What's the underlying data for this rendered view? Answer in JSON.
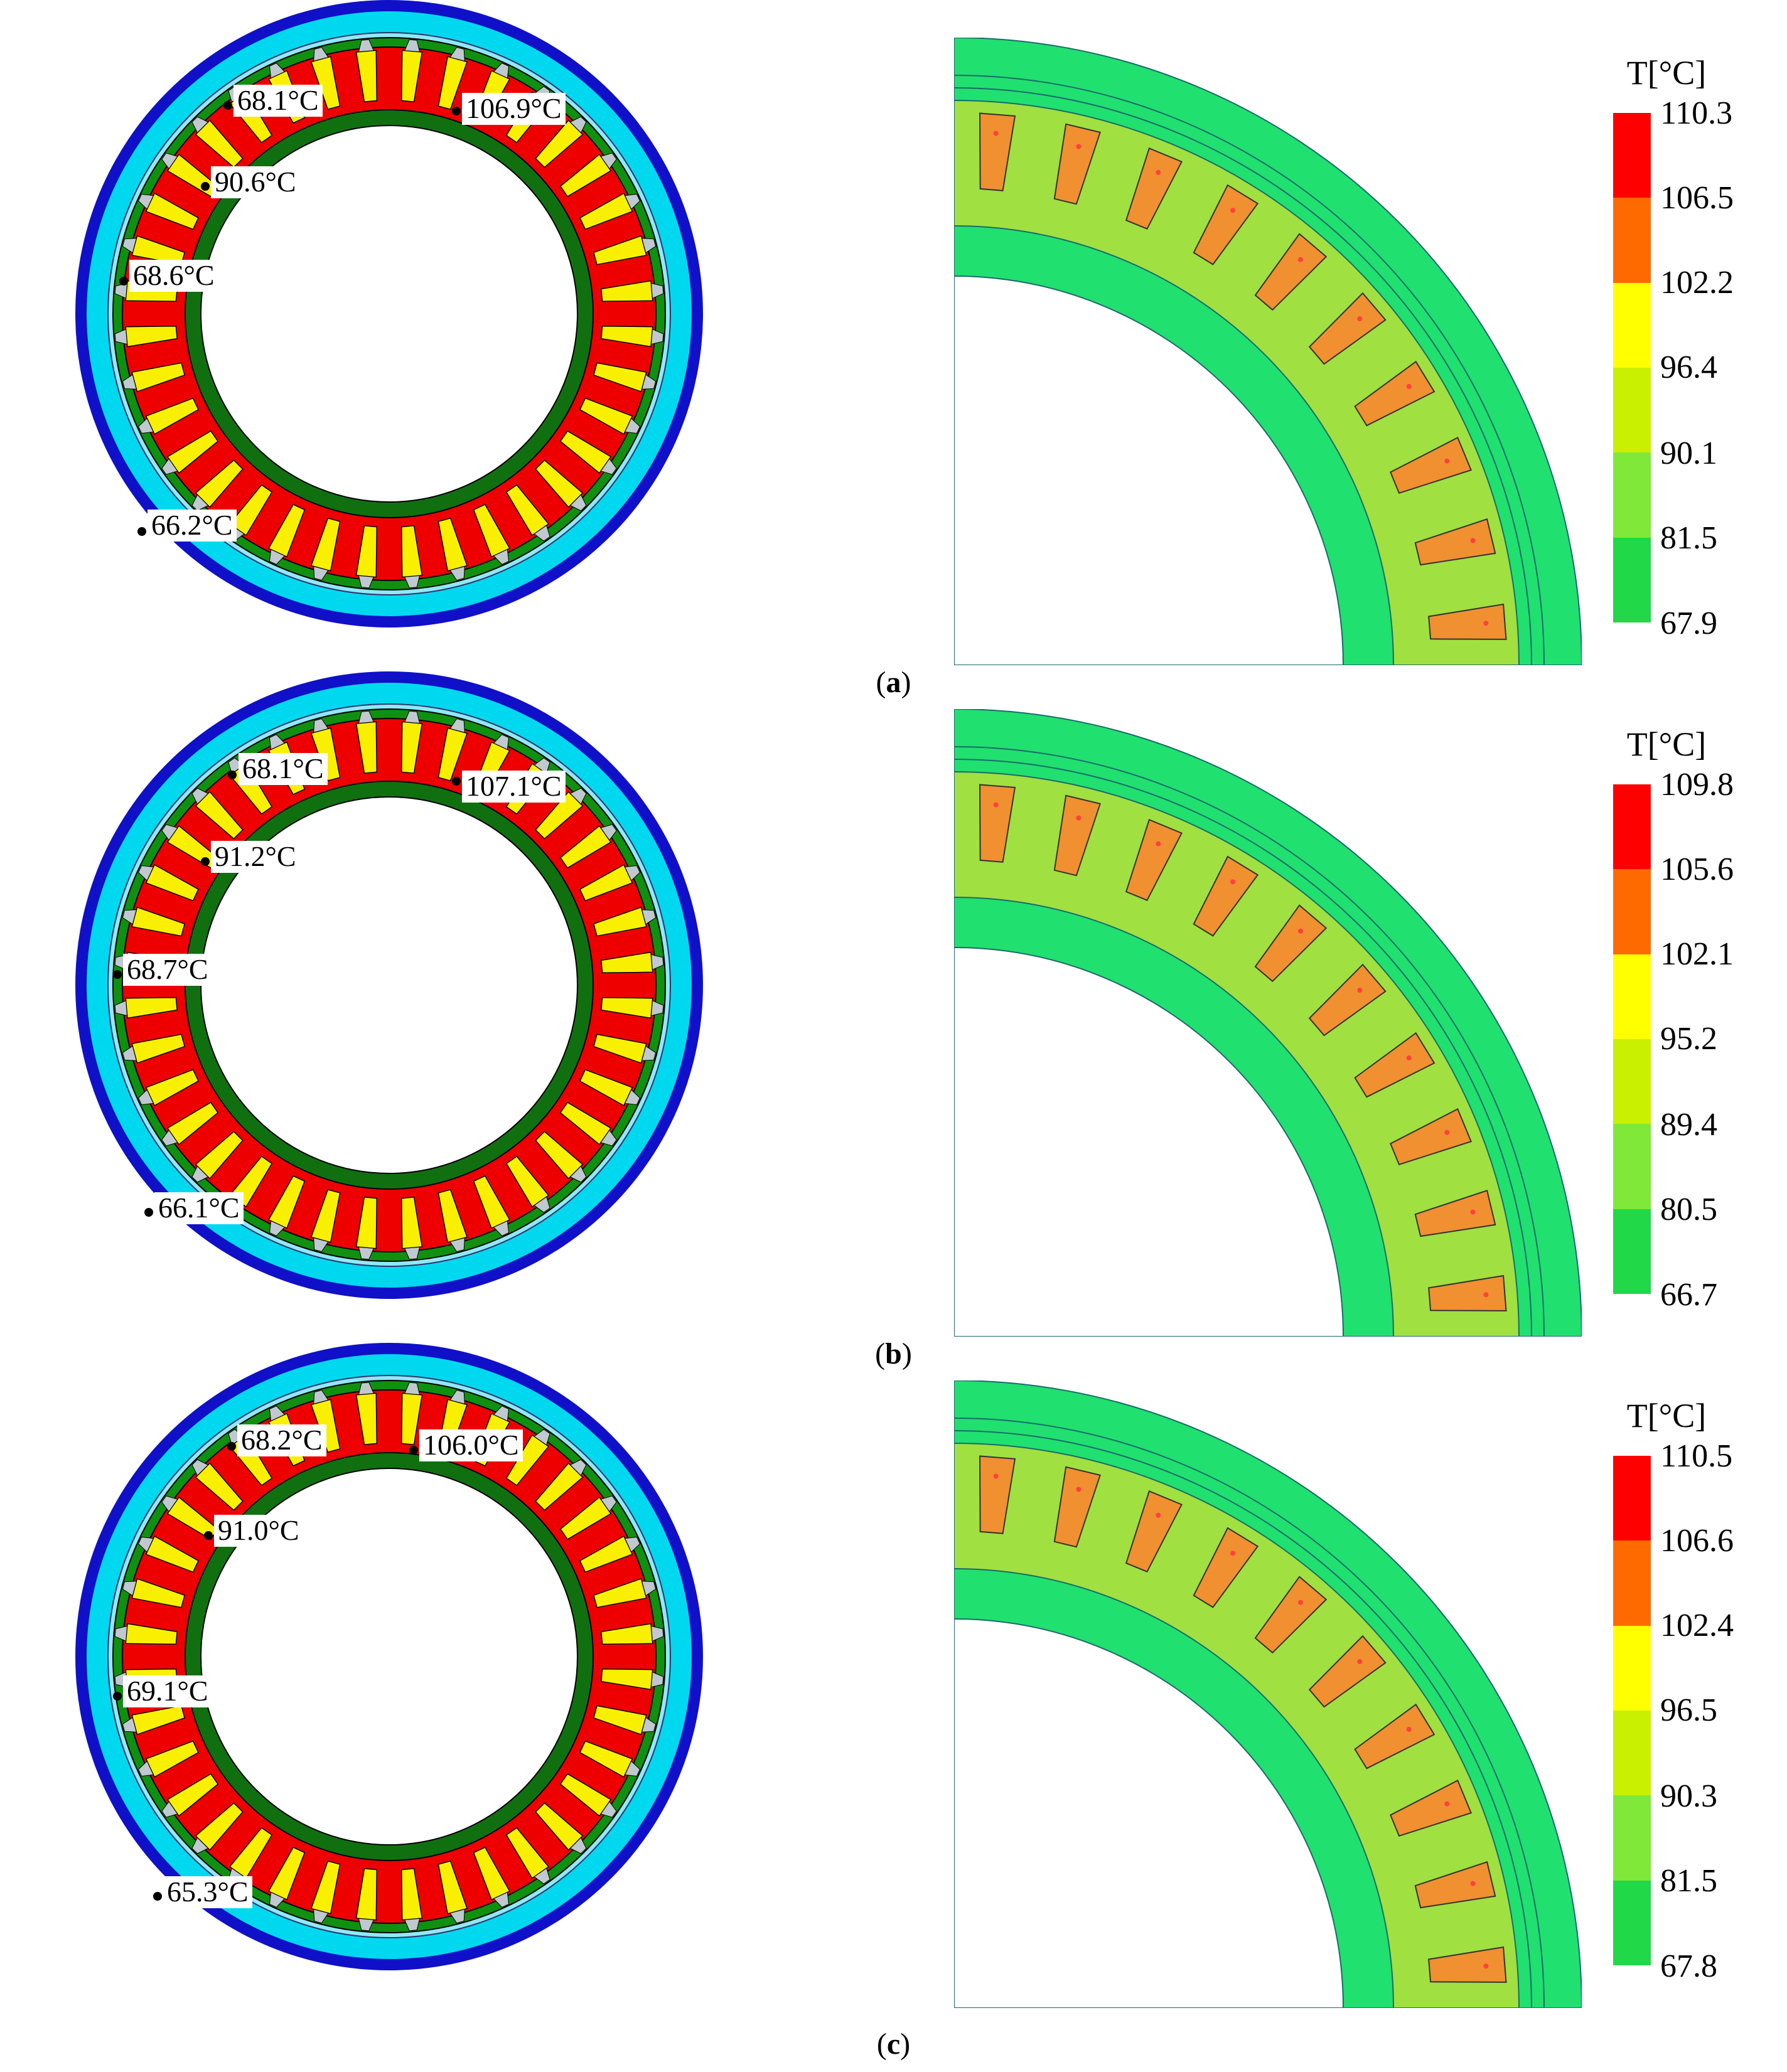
{
  "colors": {
    "frame_outer": "#1010c8",
    "frame_inner": "#00d8f0",
    "ring_gap": "#90e8f8",
    "stator_yoke": "#109010",
    "stator_red": "#ee0000",
    "slot_yellow": "#f8f000",
    "shaft": "#107010",
    "quarter_base": "#20e070",
    "quarter_stator": "#a0e040",
    "quarter_coil": "#f09030",
    "legend_scale": [
      "#ff0000",
      "#ff6a00",
      "#ffff00",
      "#c8f000",
      "#80e838",
      "#20d848",
      "#00ff40"
    ]
  },
  "panels": [
    {
      "id": "a",
      "label": "a",
      "legend": {
        "title": "T[°C]",
        "values": [
          "110.3",
          "106.5",
          "102.2",
          "96.4",
          "90.1",
          "81.5",
          "67.9"
        ]
      },
      "annotations": [
        "68.1°C",
        "106.9°C",
        "90.6°C",
        "68.6°C",
        "66.2°C"
      ]
    },
    {
      "id": "b",
      "label": "b",
      "legend": {
        "title": "T[°C]",
        "values": [
          "109.8",
          "105.6",
          "102.1",
          "95.2",
          "89.4",
          "80.5",
          "66.7"
        ]
      },
      "annotations": [
        "68.1°C",
        "107.1°C",
        "91.2°C",
        "68.7°C",
        "66.1°C"
      ]
    },
    {
      "id": "c",
      "label": "c",
      "legend": {
        "title": "T[°C]",
        "values": [
          "110.5",
          "106.6",
          "102.4",
          "96.5",
          "90.3",
          "81.5",
          "67.8"
        ]
      },
      "annotations": [
        "68.2°C",
        "106.0°C",
        "91.0°C",
        "69.1°C",
        "65.3°C"
      ]
    }
  ]
}
